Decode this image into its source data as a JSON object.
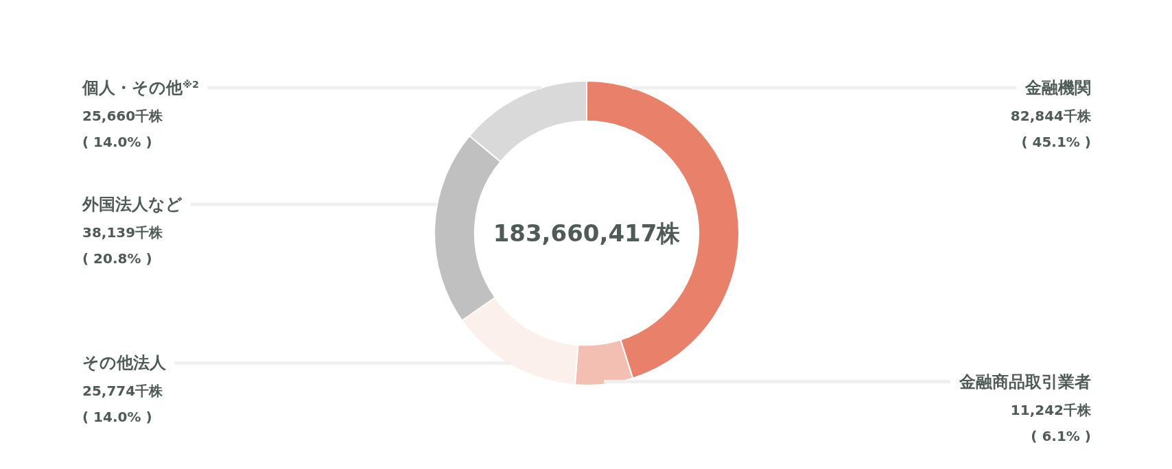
{
  "chart_data": {
    "type": "donut",
    "categories": [
      "金融機関",
      "金融商品取引業者",
      "その他法人",
      "外国法人など",
      "個人・その他$^{※2}$"
    ],
    "values": [
      82844,
      11242,
      25774,
      38139,
      25660
    ],
    "colors": [
      "#e8806a",
      "#f2bfb2",
      "#fcf0ed",
      "#c0c0c0",
      "#d9d9d9"
    ],
    "value_labels": [
      "82,844千株\n( 45.1% )",
      "11,242千株\n( 6.1% )",
      "25,774千株\n( 14.0% )",
      "38,139千株\n( 20.8% )",
      "25,660千株\n( 14.0% )"
    ],
    "annotations": [
      "183,660,417株"
    ]
  }
}
